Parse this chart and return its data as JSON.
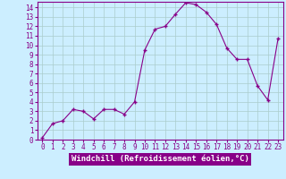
{
  "x": [
    0,
    1,
    2,
    3,
    4,
    5,
    6,
    7,
    8,
    9,
    10,
    11,
    12,
    13,
    14,
    15,
    16,
    17,
    18,
    19,
    20,
    21,
    22,
    23
  ],
  "y": [
    0.2,
    1.7,
    2.0,
    3.2,
    3.0,
    2.2,
    3.2,
    3.2,
    2.7,
    4.0,
    9.5,
    11.7,
    12.0,
    13.3,
    14.5,
    14.3,
    13.5,
    12.2,
    9.7,
    8.5,
    8.5,
    5.7,
    4.2,
    10.7
  ],
  "line_color": "#880088",
  "marker": "+",
  "marker_size": 3.5,
  "bg_color": "#cceeff",
  "grid_color": "#aacccc",
  "xlabel": "Windchill (Refroidissement éolien,°C)",
  "xlabel_color": "white",
  "xlabel_bg": "#880088",
  "ylim": [
    0,
    14.6
  ],
  "xlim": [
    -0.5,
    23.5
  ],
  "yticks": [
    0,
    1,
    2,
    3,
    4,
    5,
    6,
    7,
    8,
    9,
    10,
    11,
    12,
    13,
    14
  ],
  "xticks": [
    0,
    1,
    2,
    3,
    4,
    5,
    6,
    7,
    8,
    9,
    10,
    11,
    12,
    13,
    14,
    15,
    16,
    17,
    18,
    19,
    20,
    21,
    22,
    23
  ],
  "tick_fontsize": 5.5,
  "xlabel_fontsize": 6.5
}
